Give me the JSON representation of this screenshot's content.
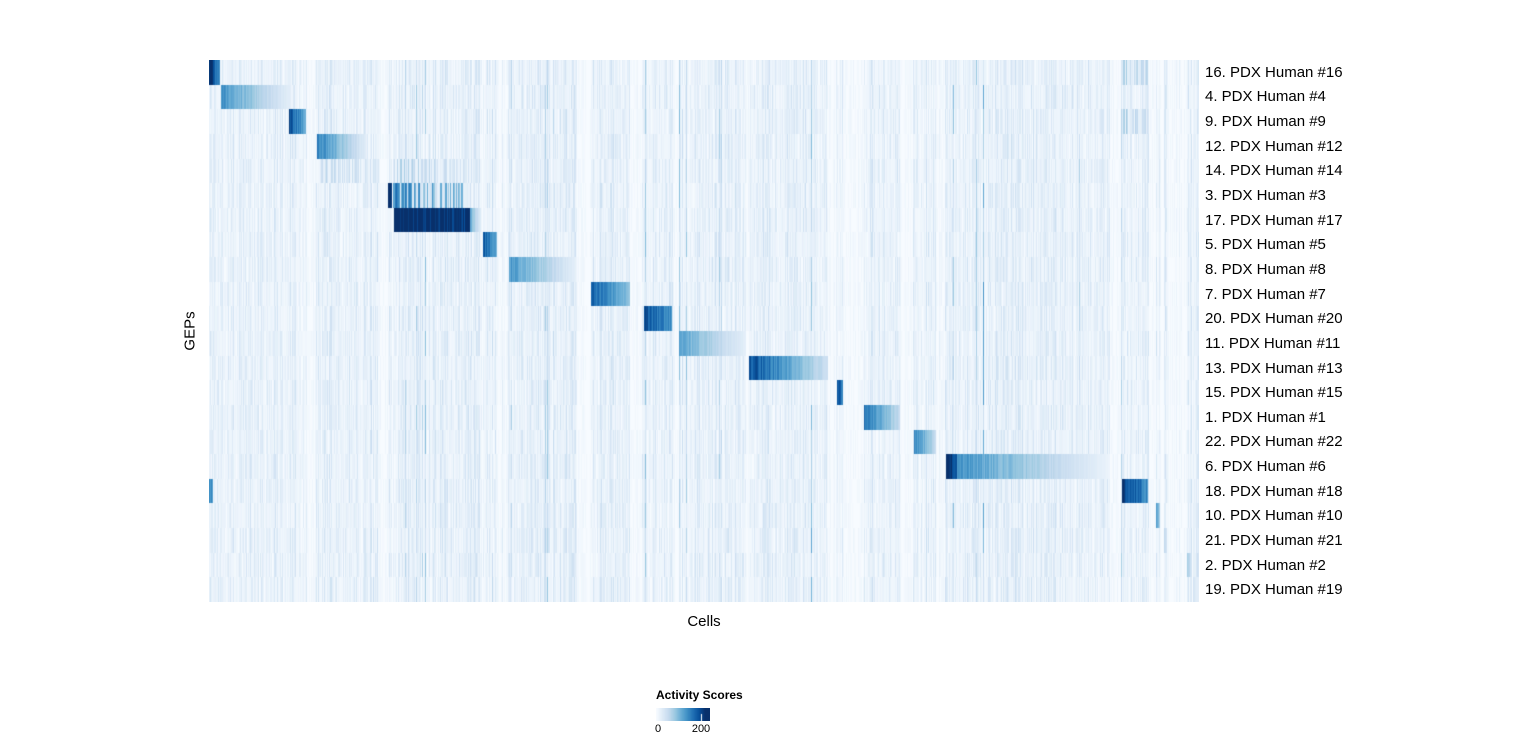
{
  "figure": {
    "background": "#ffffff"
  },
  "legend": {
    "title": "Activity Scores",
    "tick_min": "0",
    "tick_max": "200",
    "bar_value_max": 240,
    "clip_value": 220
  },
  "chart_data": {
    "type": "heatmap",
    "title": "",
    "xlabel": "Cells",
    "ylabel": "GEPs",
    "value_range": [
      0,
      200
    ],
    "legend_title": "Activity Scores",
    "colormap": [
      "#f7fbff",
      "#deebf7",
      "#c6dbef",
      "#9ecae1",
      "#6baed6",
      "#4292c6",
      "#2171b5",
      "#08519c",
      "#08306b"
    ],
    "noise_seed": 1337,
    "n_cols": 990,
    "n_rows": 22,
    "rows": [
      {
        "label": "16. PDX Human #16",
        "segments": [
          {
            "s": 0.0,
            "e": 0.011,
            "v1": 215,
            "v2": 150
          },
          {
            "s": 0.922,
            "e": 0.949,
            "v1": 75,
            "v2": 55,
            "striped": true
          }
        ]
      },
      {
        "label": "4. PDX Human #4",
        "segments": [
          {
            "s": 0.012,
            "e": 0.083,
            "v1": 135,
            "v2": 20
          }
        ]
      },
      {
        "label": "9. PDX Human #9",
        "segments": [
          {
            "s": 0.081,
            "e": 0.098,
            "v1": 195,
            "v2": 110
          },
          {
            "s": 0.922,
            "e": 0.949,
            "v1": 65,
            "v2": 45,
            "striped": true
          }
        ]
      },
      {
        "label": "12. PDX Human #12",
        "segments": [
          {
            "s": 0.109,
            "e": 0.159,
            "v1": 150,
            "v2": 25
          }
        ]
      },
      {
        "label": "14. PDX Human #14",
        "segments": [
          {
            "s": 0.111,
            "e": 0.172,
            "v1": 55,
            "v2": 30,
            "striped": true
          },
          {
            "s": 0.186,
            "e": 0.26,
            "v1": 65,
            "v2": 35,
            "striped": true
          }
        ]
      },
      {
        "label": "3. PDX Human #3",
        "segments": [
          {
            "s": 0.1805,
            "e": 0.1845,
            "v1": 235,
            "v2": 235
          },
          {
            "s": 0.186,
            "e": 0.26,
            "v1": 135,
            "v2": 85,
            "striped": true
          }
        ]
      },
      {
        "label": "17. PDX Human #17",
        "segments": [
          {
            "s": 0.187,
            "e": 0.264,
            "v1": 235,
            "v2": 215
          },
          {
            "s": 0.264,
            "e": 0.275,
            "v1": 110,
            "v2": 25
          }
        ]
      },
      {
        "label": "5. PDX Human #5",
        "segments": [
          {
            "s": 0.277,
            "e": 0.291,
            "v1": 185,
            "v2": 115
          }
        ]
      },
      {
        "label": "8. PDX Human #8",
        "segments": [
          {
            "s": 0.303,
            "e": 0.371,
            "v1": 130,
            "v2": 20
          }
        ]
      },
      {
        "label": "7. PDX Human #7",
        "segments": [
          {
            "s": 0.386,
            "e": 0.425,
            "v1": 180,
            "v2": 95
          }
        ]
      },
      {
        "label": "20. PDX Human #20",
        "segments": [
          {
            "s": 0.439,
            "e": 0.468,
            "v1": 190,
            "v2": 135
          }
        ]
      },
      {
        "label": "11. PDX Human #11",
        "segments": [
          {
            "s": 0.475,
            "e": 0.542,
            "v1": 120,
            "v2": 20
          }
        ]
      },
      {
        "label": "13. PDX Human #13",
        "segments": [
          {
            "s": 0.545,
            "e": 0.625,
            "v1": 195,
            "v2": 45
          }
        ]
      },
      {
        "label": "15. PDX Human #15",
        "segments": [
          {
            "s": 0.634,
            "e": 0.64,
            "v1": 195,
            "v2": 155
          }
        ]
      },
      {
        "label": "1. PDX Human #1",
        "segments": [
          {
            "s": 0.662,
            "e": 0.698,
            "v1": 160,
            "v2": 55
          }
        ]
      },
      {
        "label": "22. PDX Human #22",
        "segments": [
          {
            "s": 0.712,
            "e": 0.734,
            "v1": 150,
            "v2": 55
          }
        ]
      },
      {
        "label": "6. PDX Human #6",
        "segments": [
          {
            "s": 0.744,
            "e": 0.756,
            "v1": 235,
            "v2": 195
          },
          {
            "s": 0.756,
            "e": 0.91,
            "v1": 135,
            "v2": 12
          }
        ]
      },
      {
        "label": "18. PDX Human #18",
        "segments": [
          {
            "s": 0.0,
            "e": 0.004,
            "v1": 150,
            "v2": 140
          },
          {
            "s": 0.922,
            "e": 0.948,
            "v1": 215,
            "v2": 140
          }
        ]
      },
      {
        "label": "10. PDX Human #10",
        "segments": [
          {
            "s": 0.957,
            "e": 0.961,
            "v1": 125,
            "v2": 85
          }
        ]
      },
      {
        "label": "21. PDX Human #21",
        "segments": [
          {
            "s": 0.965,
            "e": 0.968,
            "v1": 55,
            "v2": 40
          }
        ]
      },
      {
        "label": "2. PDX Human #2",
        "segments": [
          {
            "s": 0.988,
            "e": 0.992,
            "v1": 75,
            "v2": 50
          }
        ]
      },
      {
        "label": "19. PDX Human #19",
        "segments": [
          {
            "s": 0.994,
            "e": 1.0,
            "v1": 35,
            "v2": 20
          }
        ]
      }
    ]
  }
}
